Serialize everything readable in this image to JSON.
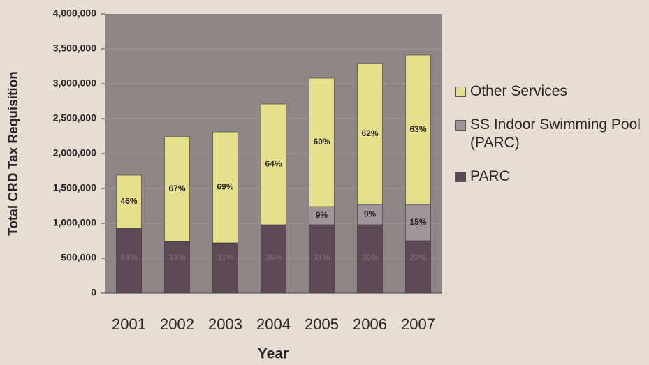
{
  "chart_data": {
    "type": "stacked_bar",
    "y_label": "Total CRD Tax Requisition",
    "x_label": "Year",
    "categories": [
      "2001",
      "2002",
      "2003",
      "2004",
      "2005",
      "2006",
      "2007"
    ],
    "series": [
      {
        "name": "PARC",
        "color": "#5e4a56",
        "values": [
          930000,
          740000,
          720000,
          980000,
          980000,
          980000,
          750000
        ],
        "share_labels": [
          "54%",
          "33%",
          "31%",
          "36%",
          "31%",
          "30%",
          "22%"
        ]
      },
      {
        "name": "SS Indoor Swimming Pool (PARC)",
        "color": "#a0959a",
        "values": [
          null,
          null,
          null,
          null,
          260000,
          290000,
          520000
        ],
        "share_labels": [
          null,
          null,
          null,
          null,
          "9%",
          "9%",
          "15%"
        ]
      },
      {
        "name": "Other Services",
        "color": "#e4e08c",
        "values": [
          760000,
          1500000,
          1590000,
          1730000,
          1840000,
          2020000,
          2140000
        ],
        "share_labels": [
          "46%",
          "67%",
          "69%",
          "64%",
          "60%",
          "62%",
          "63%"
        ]
      }
    ],
    "ylim": [
      0,
      4000000
    ],
    "yticks": [
      0,
      {
        "value": 500000,
        "label": "500,000"
      },
      {
        "value": 1000000,
        "label": "1,000,000"
      },
      {
        "value": 1500000,
        "label": "1,500,000"
      },
      {
        "value": 2000000,
        "label": "2,000,000"
      },
      {
        "value": 2500000,
        "label": "2,500,000"
      },
      {
        "value": 3000000,
        "label": "3,000,000"
      },
      {
        "value": 3500000,
        "label": "3,500,000"
      },
      {
        "value": 4000000,
        "label": "4,000,000"
      }
    ],
    "grid": true,
    "legend": "right"
  }
}
